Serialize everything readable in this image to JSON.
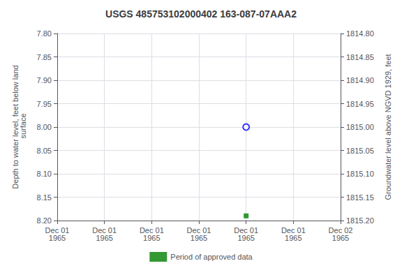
{
  "chart_data": {
    "type": "scatter",
    "title": "USGS 485753102000402 163-087-07AAA2",
    "ylabel": "Depth to water level, feet below land\n surface",
    "y2label": "Groundwater level above NGVD 1929, feet",
    "categories": [
      "Dec 01\n1965",
      "Dec 01\n1965",
      "Dec 01\n1965",
      "Dec 01\n1965",
      "Dec 01\n1965",
      "Dec 01\n1965",
      "Dec 02\n1965"
    ],
    "series": [
      {
        "color": "blue",
        "marker": "open_circle",
        "values": [
          null,
          null,
          null,
          null,
          8.0,
          null,
          null
        ]
      },
      {
        "name": "Period of approved data",
        "color": "#008000",
        "marker": "square",
        "values": [
          null,
          null,
          null,
          null,
          8.19,
          null,
          null
        ]
      }
    ],
    "ylim": [
      8.2,
      7.8
    ],
    "yticks": [
      {
        "value": 7.8,
        "label": "7.80"
      },
      7.85,
      {
        "value": 7.9,
        "label": "7.90"
      },
      7.95,
      {
        "value": 8.0,
        "label": "8.00"
      },
      8.05,
      {
        "value": 8.1,
        "label": "8.10"
      },
      8.15,
      {
        "value": 8.2,
        "label": "8.20"
      }
    ],
    "y2lim": [
      1815.2,
      1814.8
    ],
    "y2ticks": [
      {
        "value": 1815.2,
        "label": "1815.20"
      },
      1815.15,
      {
        "value": 1815.1,
        "label": "1815.10"
      },
      1815.05,
      {
        "value": 1815.0,
        "label": "1815.00"
      },
      1814.95,
      {
        "value": 1814.9,
        "label": "1814.90"
      },
      1814.85,
      {
        "value": 1814.8,
        "label": "1814.80"
      }
    ],
    "grid": true,
    "legend": "bottom"
  }
}
